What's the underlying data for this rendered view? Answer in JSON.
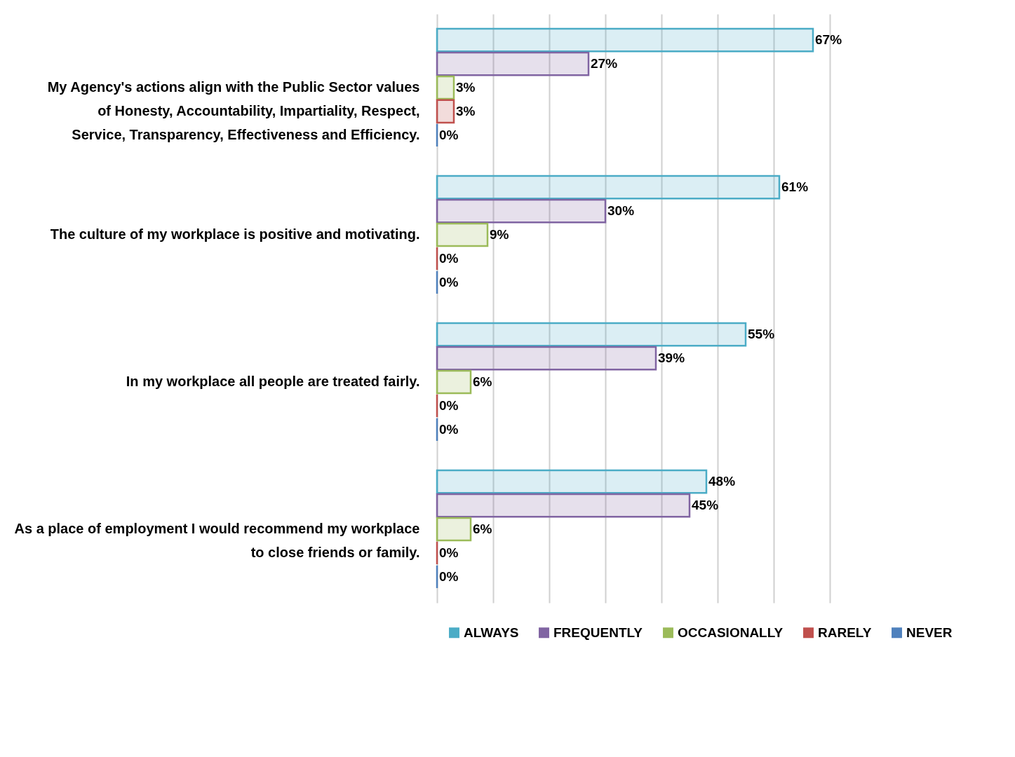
{
  "chart_data": {
    "type": "bar",
    "orientation": "horizontal",
    "categories": [
      "My Agency's actions align with the Public Sector values of Honesty, Accountability, Impartiality, Respect, Service, Transparency, Effectiveness and Efficiency.",
      "The culture of my workplace is positive and motivating.",
      "In my workplace all people are treated fairly.",
      "As a place of employment I would recommend my workplace to close friends or family."
    ],
    "series": [
      {
        "name": "ALWAYS",
        "color": "#4bacc6",
        "values": [
          67,
          61,
          55,
          48
        ],
        "value_labels": [
          "67%",
          "61%",
          "55%",
          "48%"
        ]
      },
      {
        "name": "FREQUENTLY",
        "color": "#8064a2",
        "values": [
          27,
          30,
          39,
          45
        ],
        "value_labels": [
          "27%",
          "30%",
          "39%",
          "45%"
        ]
      },
      {
        "name": "OCCASIONALLY",
        "color": "#9bbb59",
        "values": [
          3,
          9,
          6,
          6
        ],
        "value_labels": [
          "3%",
          "9%",
          "6%",
          "6%"
        ]
      },
      {
        "name": "RARELY",
        "color": "#c0504d",
        "values": [
          3,
          0,
          0,
          0
        ],
        "value_labels": [
          "3%",
          "0%",
          "0%",
          "0%"
        ]
      },
      {
        "name": "NEVER",
        "color": "#4f81bd",
        "values": [
          0,
          0,
          0,
          0
        ],
        "value_labels": [
          "0%",
          "0%",
          "0%",
          "0%"
        ]
      }
    ],
    "xlim": [
      0,
      70
    ],
    "xticks": [
      {
        "value": 0,
        "label": null
      },
      {
        "value": 10,
        "label": null
      },
      {
        "value": 20,
        "label": null
      },
      {
        "value": 30,
        "label": null
      },
      {
        "value": 40,
        "label": null
      },
      {
        "value": 50,
        "label": null
      },
      {
        "value": 60,
        "label": null
      },
      {
        "value": 70,
        "label": null
      }
    ],
    "grid": "x",
    "tick_labels": "y",
    "legend": "bottom"
  }
}
